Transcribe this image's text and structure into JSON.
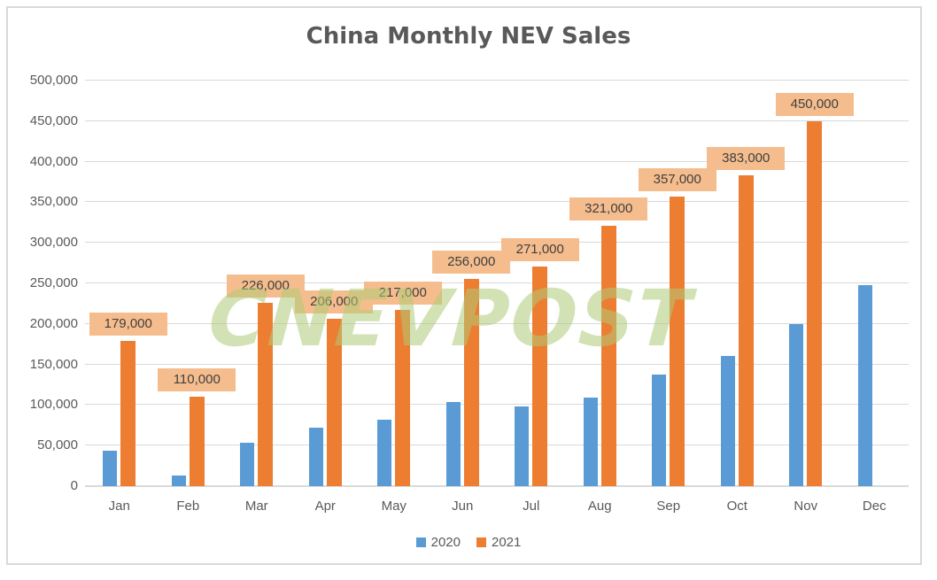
{
  "title": "China Monthly NEV Sales",
  "watermark": "CNEVPOST",
  "colors": {
    "series_2020": "#5B9BD5",
    "series_2021": "#ED7D31",
    "gridline": "#D9D9D9",
    "axis_text": "#595959",
    "title_text": "#595959",
    "data_label_bg": "#F5BD8D",
    "data_label_text": "#404040",
    "frame_border": "#D9D9D9",
    "watermark_green": "#C6DD9E"
  },
  "legend": {
    "items": [
      {
        "label": "2020",
        "color": "#5B9BD5"
      },
      {
        "label": "2021",
        "color": "#ED7D31"
      }
    ],
    "position": "bottom"
  },
  "chart_data": {
    "type": "bar",
    "title": "China Monthly NEV Sales",
    "categories": [
      "Jan",
      "Feb",
      "Mar",
      "Apr",
      "May",
      "Jun",
      "Jul",
      "Aug",
      "Sep",
      "Oct",
      "Nov",
      "Dec"
    ],
    "series": [
      {
        "name": "2020",
        "color": "#5B9BD5",
        "values": [
          44000,
          13000,
          53000,
          72000,
          82000,
          104000,
          98000,
          109000,
          138000,
          160000,
          200000,
          248000
        ],
        "data_labels": [
          null,
          null,
          null,
          null,
          null,
          null,
          null,
          null,
          null,
          null,
          null,
          null
        ]
      },
      {
        "name": "2021",
        "color": "#ED7D31",
        "values": [
          179000,
          110000,
          226000,
          206000,
          217000,
          256000,
          271000,
          321000,
          357000,
          383000,
          450000,
          null
        ],
        "data_labels": [
          "179,000",
          "110,000",
          "226,000",
          "206,000",
          "217,000",
          "256,000",
          "271,000",
          "321,000",
          "357,000",
          "383,000",
          "450,000",
          null
        ]
      }
    ],
    "xlabel": "",
    "ylabel": "",
    "ylim": [
      0,
      500000
    ],
    "ytick_step": 50000,
    "ytick_labels": [
      "0",
      "50,000",
      "100,000",
      "150,000",
      "200,000",
      "250,000",
      "300,000",
      "350,000",
      "400,000",
      "450,000",
      "500,000"
    ],
    "grid": true,
    "legend_position": "bottom"
  }
}
